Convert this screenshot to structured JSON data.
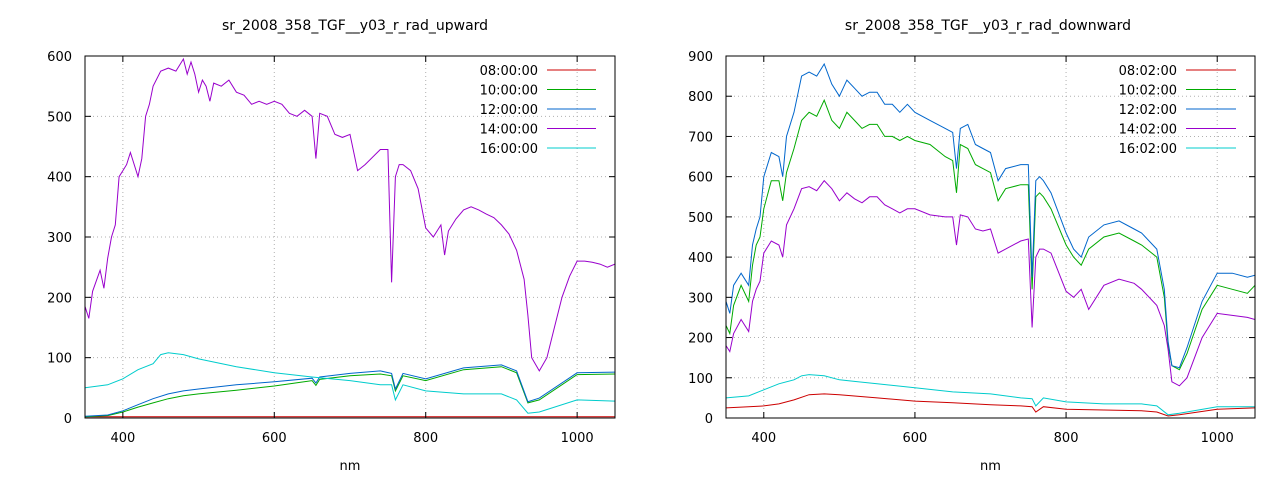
{
  "chart_data": [
    {
      "type": "line",
      "title": "sr_2008_358_TGF__y03_r_rad_upward",
      "xlabel": "nm",
      "ylabel": "",
      "xlim": [
        350,
        1050
      ],
      "ylim": [
        0,
        600
      ],
      "xticks": [
        400,
        600,
        800,
        1000
      ],
      "yticks": [
        0,
        100,
        200,
        300,
        400,
        500,
        600
      ],
      "grid": true,
      "legend": "top-right",
      "series": [
        {
          "name": "08:00:00",
          "color": "#cc0000",
          "x": [
            350,
            380,
            400,
            420,
            440,
            460,
            480,
            500,
            550,
            600,
            650,
            700,
            740,
            755,
            760,
            770,
            800,
            850,
            900,
            920,
            935,
            950,
            1000,
            1050
          ],
          "y": [
            2,
            2,
            2,
            2,
            2,
            2,
            2,
            2,
            2,
            2,
            2,
            2,
            2,
            2,
            2,
            2,
            2,
            2,
            2,
            2,
            2,
            2,
            2,
            2
          ]
        },
        {
          "name": "10:00:00",
          "color": "#00aa00",
          "x": [
            350,
            380,
            400,
            420,
            440,
            460,
            480,
            500,
            550,
            600,
            650,
            655,
            660,
            700,
            740,
            755,
            760,
            770,
            800,
            850,
            900,
            920,
            935,
            950,
            1000,
            1050
          ],
          "y": [
            2,
            4,
            10,
            18,
            25,
            32,
            37,
            40,
            46,
            53,
            62,
            54,
            64,
            70,
            73,
            70,
            45,
            70,
            62,
            80,
            85,
            75,
            25,
            30,
            72,
            73
          ]
        },
        {
          "name": "12:00:00",
          "color": "#0066cc",
          "x": [
            350,
            380,
            400,
            420,
            440,
            460,
            480,
            500,
            550,
            600,
            650,
            655,
            660,
            700,
            740,
            755,
            760,
            770,
            800,
            850,
            900,
            920,
            935,
            950,
            1000,
            1050
          ],
          "y": [
            3,
            5,
            12,
            22,
            32,
            40,
            45,
            48,
            55,
            60,
            66,
            58,
            68,
            74,
            78,
            74,
            48,
            74,
            65,
            83,
            88,
            78,
            27,
            33,
            75,
            76
          ]
        },
        {
          "name": "14:00:00",
          "color": "#9900cc",
          "x": [
            350,
            355,
            360,
            370,
            375,
            380,
            385,
            390,
            395,
            400,
            405,
            410,
            420,
            425,
            430,
            435,
            440,
            450,
            460,
            470,
            480,
            485,
            490,
            495,
            500,
            505,
            510,
            515,
            520,
            530,
            540,
            550,
            560,
            570,
            580,
            590,
            600,
            610,
            620,
            630,
            640,
            650,
            655,
            660,
            670,
            680,
            690,
            700,
            710,
            720,
            740,
            750,
            755,
            760,
            765,
            770,
            780,
            790,
            800,
            810,
            820,
            825,
            830,
            840,
            850,
            860,
            870,
            880,
            890,
            900,
            910,
            920,
            930,
            935,
            940,
            950,
            960,
            970,
            980,
            990,
            1000,
            1010,
            1020,
            1030,
            1040,
            1050
          ],
          "y": [
            185,
            165,
            210,
            245,
            215,
            265,
            300,
            320,
            400,
            410,
            420,
            440,
            400,
            430,
            500,
            520,
            550,
            575,
            580,
            575,
            595,
            570,
            590,
            570,
            540,
            560,
            550,
            525,
            555,
            550,
            560,
            540,
            535,
            520,
            525,
            520,
            525,
            520,
            505,
            500,
            510,
            500,
            430,
            505,
            500,
            470,
            465,
            470,
            410,
            420,
            445,
            445,
            225,
            400,
            420,
            420,
            410,
            380,
            315,
            300,
            320,
            270,
            310,
            330,
            345,
            350,
            345,
            338,
            332,
            320,
            305,
            278,
            230,
            170,
            100,
            78,
            100,
            150,
            200,
            235,
            260,
            260,
            258,
            255,
            250,
            255
          ]
        },
        {
          "name": "16:00:00",
          "color": "#00cccc",
          "x": [
            350,
            380,
            400,
            420,
            440,
            450,
            460,
            480,
            500,
            550,
            600,
            650,
            700,
            740,
            755,
            760,
            770,
            800,
            850,
            900,
            920,
            935,
            950,
            1000,
            1050
          ],
          "y": [
            50,
            55,
            65,
            80,
            90,
            105,
            108,
            105,
            98,
            85,
            75,
            68,
            62,
            55,
            55,
            30,
            55,
            45,
            40,
            40,
            30,
            8,
            10,
            30,
            28
          ]
        }
      ]
    },
    {
      "type": "line",
      "title": "sr_2008_358_TGF__y03_r_rad_downward",
      "xlabel": "nm",
      "ylabel": "",
      "xlim": [
        350,
        1050
      ],
      "ylim": [
        0,
        900
      ],
      "xticks": [
        400,
        600,
        800,
        1000
      ],
      "yticks": [
        0,
        100,
        200,
        300,
        400,
        500,
        600,
        700,
        800,
        900
      ],
      "grid": true,
      "legend": "top-right",
      "series": [
        {
          "name": "08:02:00",
          "color": "#cc0000",
          "x": [
            350,
            380,
            400,
            420,
            440,
            460,
            480,
            500,
            550,
            600,
            650,
            700,
            740,
            755,
            760,
            770,
            800,
            850,
            900,
            920,
            935,
            950,
            1000,
            1050
          ],
          "y": [
            25,
            28,
            30,
            35,
            45,
            58,
            60,
            58,
            50,
            42,
            38,
            33,
            30,
            28,
            15,
            28,
            22,
            20,
            18,
            15,
            5,
            8,
            22,
            25
          ]
        },
        {
          "name": "10:02:00",
          "color": "#00aa00",
          "x": [
            350,
            355,
            360,
            370,
            380,
            385,
            390,
            395,
            400,
            410,
            420,
            425,
            430,
            440,
            450,
            460,
            470,
            480,
            490,
            500,
            510,
            520,
            530,
            540,
            550,
            560,
            570,
            580,
            590,
            600,
            620,
            640,
            650,
            655,
            660,
            670,
            680,
            690,
            700,
            710,
            720,
            740,
            750,
            755,
            760,
            765,
            770,
            780,
            800,
            810,
            820,
            830,
            850,
            870,
            890,
            900,
            920,
            930,
            935,
            940,
            950,
            960,
            980,
            1000,
            1020,
            1040,
            1050
          ],
          "y": [
            230,
            210,
            280,
            330,
            290,
            380,
            430,
            450,
            520,
            590,
            590,
            540,
            610,
            670,
            740,
            760,
            750,
            790,
            740,
            720,
            760,
            740,
            720,
            730,
            730,
            700,
            700,
            690,
            700,
            690,
            680,
            650,
            640,
            560,
            680,
            670,
            630,
            620,
            610,
            540,
            570,
            580,
            580,
            320,
            550,
            560,
            550,
            520,
            430,
            400,
            380,
            420,
            450,
            460,
            440,
            430,
            400,
            300,
            180,
            130,
            120,
            160,
            270,
            330,
            320,
            310,
            330
          ]
        },
        {
          "name": "12:02:00",
          "color": "#0066cc",
          "x": [
            350,
            355,
            360,
            370,
            380,
            385,
            390,
            395,
            400,
            410,
            420,
            425,
            430,
            440,
            450,
            460,
            470,
            480,
            490,
            500,
            510,
            520,
            530,
            540,
            550,
            560,
            570,
            580,
            590,
            600,
            620,
            640,
            650,
            655,
            660,
            670,
            680,
            690,
            700,
            710,
            720,
            740,
            750,
            755,
            760,
            765,
            770,
            780,
            800,
            810,
            820,
            830,
            850,
            870,
            890,
            900,
            920,
            930,
            935,
            940,
            950,
            960,
            980,
            1000,
            1020,
            1040,
            1050
          ],
          "y": [
            290,
            260,
            330,
            360,
            330,
            430,
            470,
            500,
            600,
            660,
            650,
            600,
            700,
            760,
            850,
            860,
            850,
            880,
            830,
            800,
            840,
            820,
            800,
            810,
            810,
            780,
            780,
            760,
            780,
            760,
            740,
            720,
            710,
            620,
            720,
            730,
            680,
            670,
            660,
            590,
            620,
            630,
            630,
            350,
            590,
            600,
            590,
            560,
            460,
            420,
            400,
            450,
            480,
            490,
            470,
            460,
            420,
            320,
            190,
            130,
            125,
            175,
            290,
            360,
            360,
            350,
            355
          ]
        },
        {
          "name": "14:02:00",
          "color": "#9900cc",
          "x": [
            350,
            355,
            360,
            370,
            380,
            385,
            390,
            395,
            400,
            410,
            420,
            425,
            430,
            440,
            450,
            460,
            470,
            480,
            490,
            500,
            510,
            520,
            530,
            540,
            550,
            560,
            570,
            580,
            590,
            600,
            620,
            640,
            650,
            655,
            660,
            670,
            680,
            690,
            700,
            710,
            720,
            740,
            750,
            755,
            760,
            765,
            770,
            780,
            800,
            810,
            820,
            830,
            850,
            870,
            890,
            900,
            920,
            930,
            935,
            940,
            950,
            960,
            980,
            1000,
            1020,
            1040,
            1050
          ],
          "y": [
            180,
            165,
            210,
            245,
            215,
            290,
            320,
            340,
            410,
            440,
            430,
            400,
            480,
            520,
            570,
            575,
            565,
            590,
            570,
            540,
            560,
            545,
            535,
            550,
            550,
            530,
            520,
            510,
            520,
            520,
            505,
            500,
            500,
            430,
            505,
            500,
            470,
            465,
            470,
            410,
            420,
            440,
            445,
            225,
            400,
            420,
            420,
            410,
            315,
            300,
            320,
            270,
            330,
            345,
            335,
            320,
            280,
            230,
            170,
            90,
            80,
            100,
            200,
            260,
            255,
            250,
            245
          ]
        },
        {
          "name": "16:02:00",
          "color": "#00cccc",
          "x": [
            350,
            380,
            400,
            420,
            440,
            450,
            460,
            480,
            500,
            550,
            600,
            650,
            700,
            740,
            755,
            760,
            770,
            800,
            850,
            900,
            920,
            935,
            950,
            1000,
            1050
          ],
          "y": [
            50,
            55,
            70,
            85,
            95,
            105,
            108,
            105,
            95,
            85,
            75,
            65,
            60,
            50,
            48,
            30,
            50,
            40,
            35,
            35,
            30,
            8,
            12,
            28,
            28
          ]
        }
      ]
    }
  ]
}
